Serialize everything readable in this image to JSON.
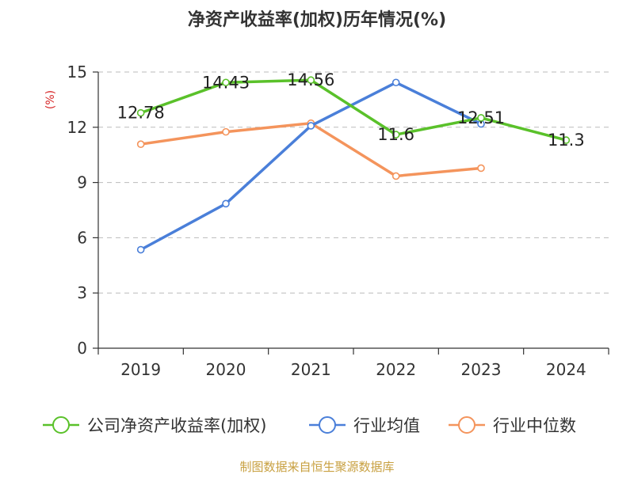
{
  "chart_data": {
    "type": "line",
    "title": "净资产收益率(加权)历年情况(%)",
    "ylabel": "(%)",
    "xlabel": "",
    "categories": [
      "2019",
      "2020",
      "2021",
      "2022",
      "2023",
      "2024"
    ],
    "ylim": [
      0,
      15
    ],
    "yticks": [
      0,
      3,
      6,
      9,
      12,
      15
    ],
    "grid": true,
    "legend_position": "bottom",
    "series": [
      {
        "name": "公司净资产收益率(加权)",
        "color": "#5ac12a",
        "values": [
          12.78,
          14.43,
          14.56,
          11.6,
          12.51,
          11.3
        ],
        "labels": [
          "12.78",
          "14.43",
          "14.56",
          "11.6",
          "12.51",
          "11.3"
        ],
        "show_labels": true
      },
      {
        "name": "行业均值",
        "color": "#4a7fd9",
        "values": [
          5.35,
          7.85,
          12.08,
          14.43,
          12.18,
          null
        ],
        "show_labels": false
      },
      {
        "name": "行业中位数",
        "color": "#f4945c",
        "values": [
          11.08,
          11.75,
          12.22,
          9.35,
          9.78,
          null
        ],
        "show_labels": false
      }
    ],
    "source": "制图数据来自恒生聚源数据库",
    "colors": {
      "title": "#333333",
      "ylabel": "#d62728",
      "axis": "#333333",
      "grid": "#bbbbbb",
      "source": "#c8a040"
    }
  }
}
